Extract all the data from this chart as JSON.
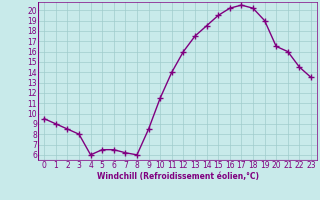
{
  "x": [
    0,
    1,
    2,
    3,
    4,
    5,
    6,
    7,
    8,
    9,
    10,
    11,
    12,
    13,
    14,
    15,
    16,
    17,
    18,
    19,
    20,
    21,
    22,
    23
  ],
  "y": [
    9.5,
    9.0,
    8.5,
    8.0,
    6.0,
    6.5,
    6.5,
    6.2,
    6.0,
    8.5,
    11.5,
    14.0,
    16.0,
    17.5,
    18.5,
    19.5,
    20.2,
    20.5,
    20.2,
    19.0,
    16.5,
    16.0,
    14.5,
    13.5
  ],
  "color": "#800080",
  "bg_color": "#c8eaea",
  "grid_color": "#a0cccc",
  "xlabel": "Windchill (Refroidissement éolien,°C)",
  "xlim": [
    -0.5,
    23.5
  ],
  "ylim": [
    5.5,
    20.8
  ],
  "yticks": [
    6,
    7,
    8,
    9,
    10,
    11,
    12,
    13,
    14,
    15,
    16,
    17,
    18,
    19,
    20
  ],
  "xticks": [
    0,
    1,
    2,
    3,
    4,
    5,
    6,
    7,
    8,
    9,
    10,
    11,
    12,
    13,
    14,
    15,
    16,
    17,
    18,
    19,
    20,
    21,
    22,
    23
  ],
  "marker": "+",
  "linewidth": 1.0,
  "markersize": 4,
  "tick_fontsize": 5.5,
  "label_fontsize": 5.5
}
